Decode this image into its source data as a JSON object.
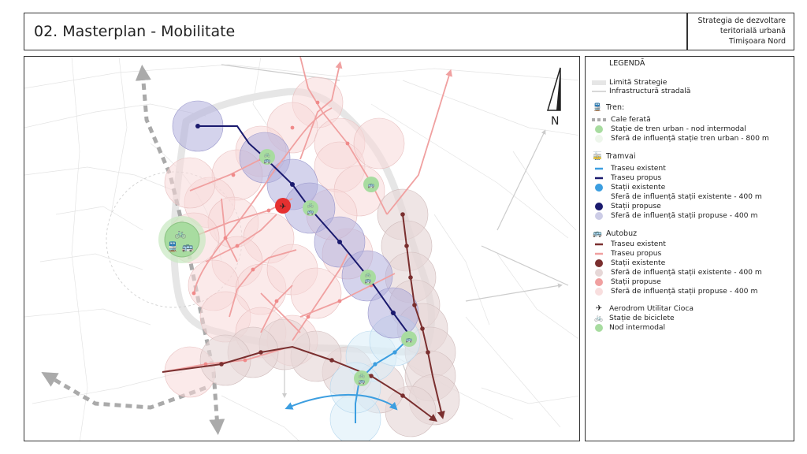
{
  "header": {
    "title": "02. Masterplan - Mobilitate",
    "subtitle_lines": [
      "Strategia de dezvoltare",
      "teritorială urbană",
      "Timișoara Nord"
    ]
  },
  "map": {
    "north_label": "N",
    "icons": [
      "train-icon",
      "bus-icon",
      "bicycle-icon",
      "airplane-icon",
      "north-arrow-icon"
    ]
  },
  "legend": {
    "title": "LEGENDĂ",
    "general": [
      {
        "label": "Limită Strategie",
        "symbol": "band"
      },
      {
        "label": "Infrastructură stradală",
        "symbol": "thin-line"
      }
    ],
    "train": {
      "title": "Tren:",
      "items": [
        {
          "label": "Cale ferată",
          "symbol": "dashed-line",
          "color": "#aaaaaa"
        },
        {
          "label": "Stație de tren urban - nod intermodal",
          "symbol": "circle",
          "color": "#a8dca0"
        },
        {
          "label": "Sferă de influență stație tren urban - 800 m",
          "symbol": "circle",
          "color": "#eef6ec"
        }
      ]
    },
    "tram": {
      "title": "Tramvai",
      "items": [
        {
          "label": "Traseu existent",
          "symbol": "line",
          "color": "#3c9ee0"
        },
        {
          "label": "Traseu propus",
          "symbol": "line",
          "color": "#1a1a6e"
        },
        {
          "label": "Stații existente",
          "symbol": "circle",
          "color": "#3c9ee0"
        },
        {
          "label": "Sferă de influență stații existente - 400 m",
          "symbol": "circle",
          "color": "#ffffff"
        },
        {
          "label": "Stații propuse",
          "symbol": "circle",
          "color": "#1a1a6e"
        },
        {
          "label": "Sferă de influență stații propuse - 400 m",
          "symbol": "circle",
          "color": "#cccce6"
        }
      ]
    },
    "bus": {
      "title": "Autobuz",
      "items": [
        {
          "label": "Traseu existent",
          "symbol": "line",
          "color": "#7a2f2f"
        },
        {
          "label": "Traseu propus",
          "symbol": "line",
          "color": "#f0a0a0"
        },
        {
          "label": "Stații existente",
          "symbol": "circle",
          "color": "#7a2f2f"
        },
        {
          "label": "Sferă de influență stații existente - 400 m",
          "symbol": "circle",
          "color": "#e6d7d7"
        },
        {
          "label": "Stații propuse",
          "symbol": "circle",
          "color": "#f0a0a0"
        },
        {
          "label": "Sferă de influență stații propuse - 400 m",
          "symbol": "circle",
          "color": "#f8dede"
        }
      ]
    },
    "other": [
      {
        "label": "Aerodrom Utilitar Cioca",
        "symbol": "airplane-icon"
      },
      {
        "label": "Stație de biciclete",
        "symbol": "bicycle-icon"
      },
      {
        "label": "Nod intermodal",
        "symbol": "circle",
        "color": "#a8dca0"
      }
    ]
  }
}
